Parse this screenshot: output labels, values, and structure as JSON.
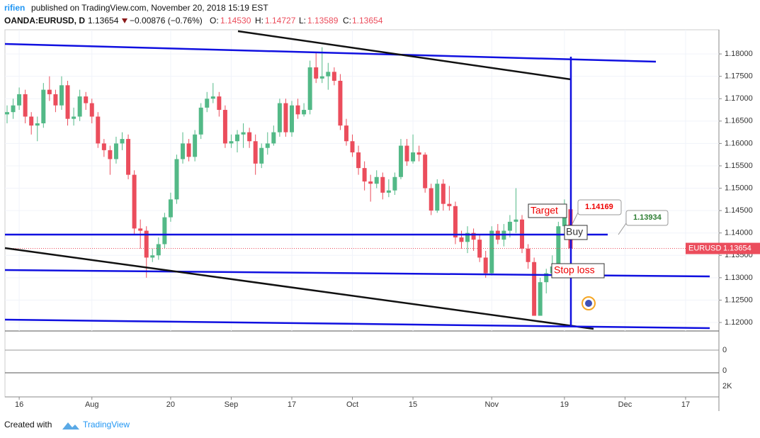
{
  "header": {
    "author": "rifien",
    "published": "published on TradingView.com, November 20, 2018 15:19 EST",
    "symbol": "OANDA:EURUSD, D",
    "last": "1.13654",
    "change": "−0.00876 (−0.76%)",
    "o_label": "O:",
    "o": "1.14530",
    "h_label": "H:",
    "h": "1.14727",
    "l_label": "L:",
    "l": "1.13589",
    "c_label": "C:",
    "c": "1.13654"
  },
  "footer": {
    "created": "Created with",
    "brand": "TradingView"
  },
  "panes": [
    "0",
    "0",
    "2K"
  ],
  "annotations": {
    "target": "Target",
    "buy": "Buy",
    "stop": "Stop loss",
    "callout_red": "1.14169",
    "callout_green": "1.13934"
  },
  "chart_data": {
    "type": "candlestick",
    "up_color": "#53b987",
    "down_color": "#eb4d5c",
    "price_tag": {
      "symbol": "EURUSD",
      "value": 1.13654,
      "label": "1.13654",
      "color": "#eb4d5c"
    },
    "xlim": [
      -0.35,
      117.5
    ],
    "xticks": [
      {
        "value": 2,
        "label": "16"
      },
      {
        "value": 14,
        "label": "Aug"
      },
      {
        "value": 27,
        "label": "20"
      },
      {
        "value": 37,
        "label": "Sep"
      },
      {
        "value": 47,
        "label": "17"
      },
      {
        "value": 57,
        "label": "Oct"
      },
      {
        "value": 67,
        "label": "15"
      },
      {
        "value": 80,
        "label": "Nov"
      },
      {
        "value": 92,
        "label": "19"
      },
      {
        "value": 102,
        "label": "Dec"
      },
      {
        "value": 112,
        "label": "17"
      }
    ],
    "ylim": [
      1.1181,
      1.1854
    ],
    "yticks": [
      {
        "value": 1.12,
        "label": "1.12000"
      },
      {
        "value": 1.125,
        "label": "1.12500"
      },
      {
        "value": 1.13,
        "label": "1.13000"
      },
      {
        "value": 1.135,
        "label": "1.13500"
      },
      {
        "value": 1.14,
        "label": "1.14000"
      },
      {
        "value": 1.145,
        "label": "1.14500"
      },
      {
        "value": 1.15,
        "label": "1.15000"
      },
      {
        "value": 1.155,
        "label": "1.15500"
      },
      {
        "value": 1.16,
        "label": "1.16000"
      },
      {
        "value": 1.165,
        "label": "1.16500"
      },
      {
        "value": 1.17,
        "label": "1.17000"
      },
      {
        "value": 1.175,
        "label": "1.17500"
      },
      {
        "value": 1.18,
        "label": "1.18000"
      }
    ],
    "open": [
      1.1665,
      1.167,
      1.1685,
      1.171,
      1.166,
      1.164,
      1.1645,
      1.172,
      1.171,
      1.1685,
      1.173,
      1.1655,
      1.166,
      1.1705,
      1.169,
      1.166,
      1.16,
      1.1585,
      1.1565,
      1.16,
      1.161,
      1.153,
      1.141,
      1.1405,
      1.1345,
      1.135,
      1.1375,
      1.1435,
      1.1475,
      1.1565,
      1.16,
      1.157,
      1.162,
      1.168,
      1.17,
      1.1705,
      1.1675,
      1.16,
      1.1605,
      1.162,
      1.1625,
      1.1605,
      1.1555,
      1.159,
      1.16,
      1.1625,
      1.169,
      1.1625,
      1.1685,
      1.1665,
      1.1675,
      1.177,
      1.1745,
      1.175,
      1.176,
      1.174,
      1.164,
      1.1605,
      1.158,
      1.1545,
      1.1515,
      1.151,
      1.1525,
      1.149,
      1.1495,
      1.1525,
      1.1595,
      1.156,
      1.158,
      1.1575,
      1.15,
      1.145,
      1.151,
      1.1465,
      1.146,
      1.139,
      1.138,
      1.14,
      1.1385,
      1.1345,
      1.131,
      1.1405,
      1.1385,
      1.1405,
      1.1425,
      1.143,
      1.1365,
      1.1335,
      1.1215,
      1.129,
      1.131,
      1.1325,
      1.1415,
      1.1453
    ],
    "high": [
      1.1685,
      1.17,
      1.1725,
      1.172,
      1.167,
      1.166,
      1.1735,
      1.175,
      1.172,
      1.175,
      1.174,
      1.168,
      1.172,
      1.1715,
      1.17,
      1.167,
      1.161,
      1.1595,
      1.1615,
      1.1625,
      1.162,
      1.154,
      1.143,
      1.1415,
      1.1365,
      1.139,
      1.1445,
      1.149,
      1.1575,
      1.1625,
      1.161,
      1.163,
      1.169,
      1.1715,
      1.1735,
      1.1715,
      1.1685,
      1.162,
      1.163,
      1.1645,
      1.1635,
      1.162,
      1.16,
      1.1625,
      1.164,
      1.17,
      1.17,
      1.1695,
      1.17,
      1.169,
      1.1785,
      1.1805,
      1.1815,
      1.178,
      1.177,
      1.1755,
      1.1655,
      1.162,
      1.1595,
      1.156,
      1.153,
      1.154,
      1.1535,
      1.152,
      1.1535,
      1.161,
      1.161,
      1.162,
      1.1595,
      1.158,
      1.151,
      1.152,
      1.152,
      1.1505,
      1.147,
      1.1405,
      1.1415,
      1.141,
      1.1395,
      1.136,
      1.1415,
      1.142,
      1.142,
      1.144,
      1.15,
      1.144,
      1.1375,
      1.1345,
      1.13,
      1.132,
      1.135,
      1.1425,
      1.1475,
      1.14727
    ],
    "low": [
      1.1645,
      1.1655,
      1.1675,
      1.1645,
      1.162,
      1.1605,
      1.1635,
      1.1695,
      1.167,
      1.1675,
      1.164,
      1.164,
      1.165,
      1.1675,
      1.1645,
      1.159,
      1.157,
      1.153,
      1.1555,
      1.1585,
      1.152,
      1.1395,
      1.1365,
      1.13,
      1.1335,
      1.134,
      1.1365,
      1.1425,
      1.1465,
      1.1555,
      1.156,
      1.156,
      1.161,
      1.167,
      1.169,
      1.166,
      1.159,
      1.159,
      1.158,
      1.159,
      1.159,
      1.153,
      1.1545,
      1.1575,
      1.1595,
      1.1615,
      1.1615,
      1.1615,
      1.1655,
      1.166,
      1.1665,
      1.1735,
      1.1735,
      1.172,
      1.173,
      1.163,
      1.1595,
      1.157,
      1.153,
      1.1495,
      1.147,
      1.15,
      1.1475,
      1.148,
      1.1485,
      1.152,
      1.155,
      1.1555,
      1.156,
      1.149,
      1.144,
      1.1445,
      1.145,
      1.145,
      1.1375,
      1.1365,
      1.1355,
      1.136,
      1.1335,
      1.13,
      1.1305,
      1.1375,
      1.137,
      1.139,
      1.14,
      1.1355,
      1.132,
      1.1215,
      1.1215,
      1.1265,
      1.13,
      1.131,
      1.1405,
      1.13589
    ],
    "close": [
      1.167,
      1.1685,
      1.171,
      1.166,
      1.164,
      1.1645,
      1.172,
      1.171,
      1.1685,
      1.173,
      1.1655,
      1.166,
      1.1705,
      1.169,
      1.166,
      1.16,
      1.1585,
      1.1565,
      1.16,
      1.161,
      1.153,
      1.141,
      1.1405,
      1.1345,
      1.135,
      1.1375,
      1.1435,
      1.1475,
      1.1565,
      1.16,
      1.157,
      1.162,
      1.168,
      1.17,
      1.1705,
      1.1675,
      1.16,
      1.1605,
      1.162,
      1.1625,
      1.1605,
      1.1555,
      1.159,
      1.16,
      1.1625,
      1.169,
      1.1625,
      1.1685,
      1.1665,
      1.1675,
      1.177,
      1.1745,
      1.175,
      1.176,
      1.174,
      1.164,
      1.1605,
      1.158,
      1.1545,
      1.1515,
      1.151,
      1.1525,
      1.149,
      1.1495,
      1.1525,
      1.1595,
      1.156,
      1.158,
      1.1575,
      1.15,
      1.145,
      1.151,
      1.1465,
      1.146,
      1.139,
      1.138,
      1.14,
      1.1385,
      1.1345,
      1.131,
      1.1405,
      1.1385,
      1.1405,
      1.1425,
      1.143,
      1.1365,
      1.1335,
      1.1215,
      1.129,
      1.131,
      1.1325,
      1.1415,
      1.1455,
      1.13654
    ]
  }
}
